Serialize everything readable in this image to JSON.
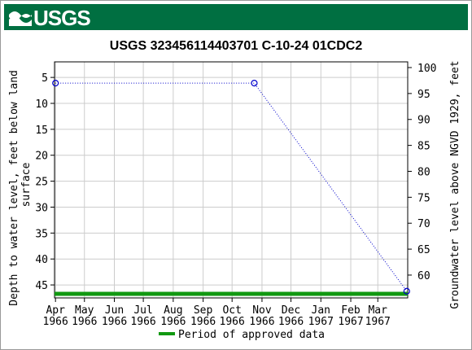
{
  "header": {
    "logo_text": "USGS"
  },
  "chart_data": {
    "type": "line",
    "title": "USGS 323456114403701 C-10-24 01CDC2",
    "ylabel_left": "Depth to water level, feet below land surface",
    "ylabel_right": "Groundwater level above NGVD 1929, feet",
    "x": [
      "1966-04-01",
      "1966-10-24",
      "1967-03-31"
    ],
    "series": [
      {
        "values": [
          6.1,
          6.1,
          46.2
        ],
        "color": "#0000cc"
      }
    ],
    "ylim_left": [
      47.5,
      2
    ],
    "ylim_right": [
      55.6,
      101.1
    ],
    "yticks_left": [
      5,
      10,
      15,
      20,
      25,
      30,
      35,
      40,
      45
    ],
    "yticks_right": [
      60,
      65,
      70,
      75,
      80,
      85,
      90,
      95,
      100
    ],
    "xticks": [
      {
        "date": "1966-04-01",
        "month": "Apr",
        "year": "1966"
      },
      {
        "date": "1966-05-01",
        "month": "May",
        "year": "1966"
      },
      {
        "date": "1966-06-01",
        "month": "Jun",
        "year": "1966"
      },
      {
        "date": "1966-07-01",
        "month": "Jul",
        "year": "1966"
      },
      {
        "date": "1966-08-01",
        "month": "Aug",
        "year": "1966"
      },
      {
        "date": "1966-09-01",
        "month": "Sep",
        "year": "1966"
      },
      {
        "date": "1966-10-01",
        "month": "Oct",
        "year": "1966"
      },
      {
        "date": "1966-11-01",
        "month": "Nov",
        "year": "1966"
      },
      {
        "date": "1966-12-01",
        "month": "Dec",
        "year": "1966"
      },
      {
        "date": "1967-01-01",
        "month": "Jan",
        "year": "1967"
      },
      {
        "date": "1967-02-01",
        "month": "Feb",
        "year": "1967"
      },
      {
        "date": "1967-03-01",
        "month": "Mar",
        "year": "1967"
      }
    ],
    "xlim": [
      "1966-03-31",
      "1967-04-01"
    ],
    "grid": true,
    "approved_period": {
      "start": "1966-03-31",
      "end": "1967-04-01",
      "color": "#119911"
    },
    "legend": {
      "label": "Period of approved data",
      "placement": "bottom"
    }
  }
}
